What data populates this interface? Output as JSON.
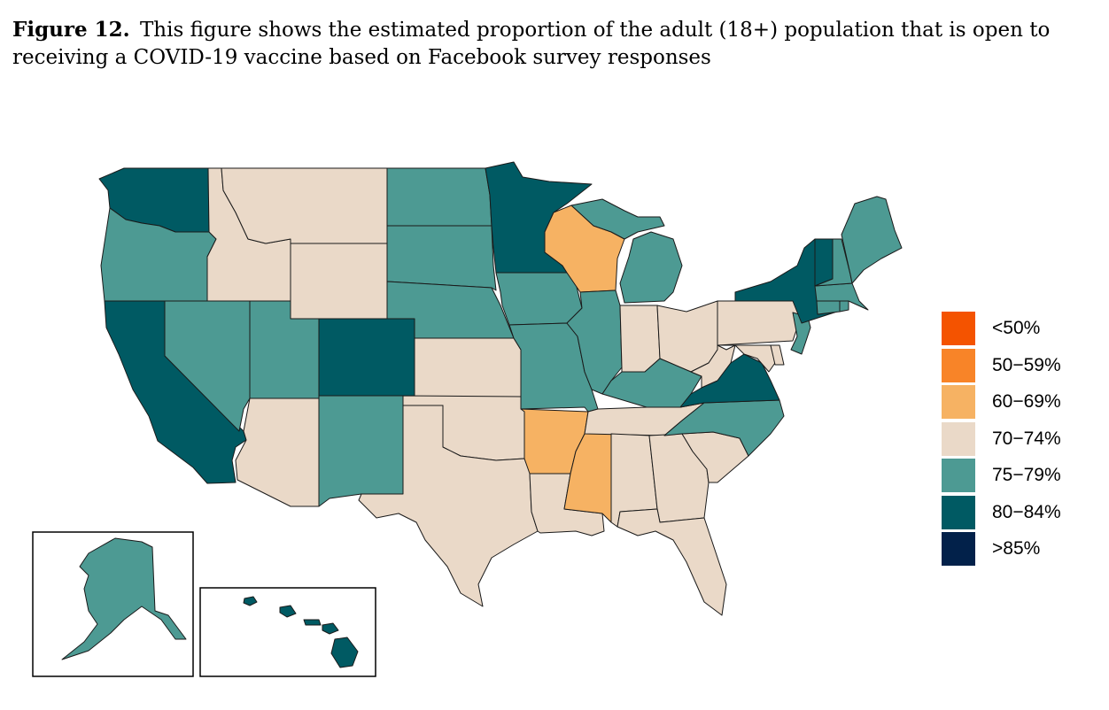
{
  "caption": {
    "label": "Figure 12.",
    "text": "This figure shows the estimated proportion of the adult (18+) population that is open to receiving a COVID-19 vaccine based on Facebook survey responses"
  },
  "colors": {
    "lt50": "#f45300",
    "c50_59": "#f88428",
    "c60_69": "#f6b263",
    "c70_74": "#ead9c8",
    "c75_79": "#4d9a93",
    "c80_84": "#005a63",
    "gt85": "#02214a"
  },
  "legend": [
    {
      "label": "<50%",
      "color_key": "lt50"
    },
    {
      "label": "50−59%",
      "color_key": "c50_59"
    },
    {
      "label": "60−69%",
      "color_key": "c60_69"
    },
    {
      "label": "70−74%",
      "color_key": "c70_74"
    },
    {
      "label": "75−79%",
      "color_key": "c75_79"
    },
    {
      "label": "80−84%",
      "color_key": "c80_84"
    },
    {
      "label": ">85%",
      "color_key": "gt85"
    }
  ],
  "states": {
    "WA": "80-84%",
    "OR": "75-79%",
    "CA": "80-84%",
    "ID": "70-74%",
    "NV": "75-79%",
    "MT": "70-74%",
    "WY": "70-74%",
    "UT": "75-79%",
    "AZ": "70-74%",
    "CO": "80-84%",
    "NM": "75-79%",
    "ND": "75-79%",
    "SD": "75-79%",
    "NE": "75-79%",
    "KS": "70-74%",
    "OK": "70-74%",
    "TX": "70-74%",
    "MN": "80-84%",
    "IA": "75-79%",
    "MO": "75-79%",
    "AR": "60-69%",
    "LA": "70-74%",
    "WI": "60-69%",
    "IL": "75-79%",
    "MS": "60-69%",
    "MI": "75-79%",
    "IN": "70-74%",
    "KY": "75-79%",
    "TN": "70-74%",
    "AL": "70-74%",
    "OH": "70-74%",
    "WV": "70-74%",
    "GA": "70-74%",
    "FL": "70-74%",
    "SC": "70-74%",
    "NC": "75-79%",
    "VA": "80-84%",
    "PA": "70-74%",
    "NY": "80-84%",
    "VT": "80-84%",
    "NH": "75-79%",
    "ME": "75-79%",
    "MA": "75-79%",
    "RI": "75-79%",
    "CT": "75-79%",
    "NJ": "75-79%",
    "DE": "70-74%",
    "MD": "70-74%",
    "AK": "75-79%",
    "HI": "80-84%"
  }
}
